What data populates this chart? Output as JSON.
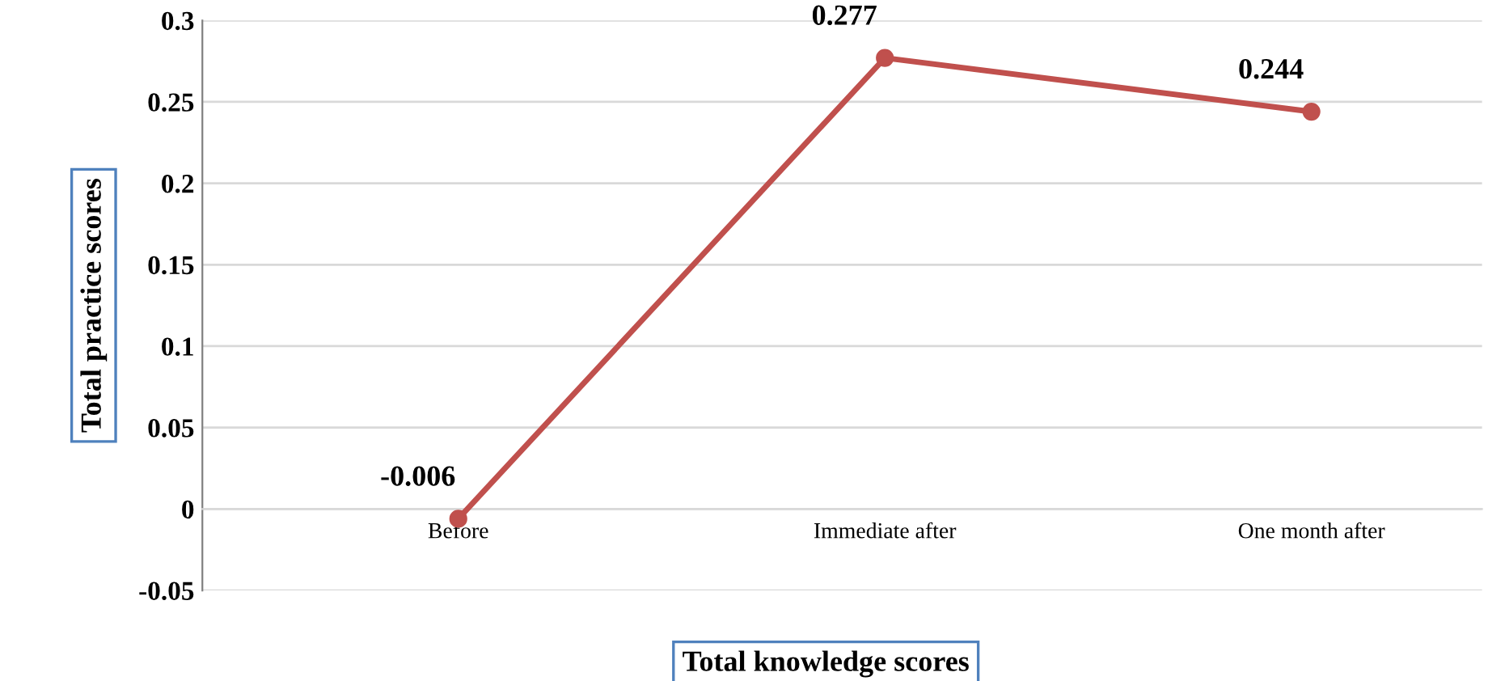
{
  "chart_data": {
    "type": "line",
    "xlabel": "Total knowledge scores",
    "ylabel": "Total practice scores",
    "categories": [
      "Before",
      "Immediate after",
      "One month after"
    ],
    "series": [
      {
        "color": "#c0504d",
        "values": [
          -0.006,
          0.277,
          0.244
        ]
      }
    ],
    "ylim": [
      -0.05,
      0.3
    ],
    "yticks": [
      {
        "value": -0.05,
        "label": "-0.05"
      },
      0,
      0.05,
      0.1,
      0.15,
      0.2,
      0.25,
      0.3
    ],
    "grid": "y",
    "marker": "circle",
    "line_style": "solid",
    "data_labels": true
  }
}
